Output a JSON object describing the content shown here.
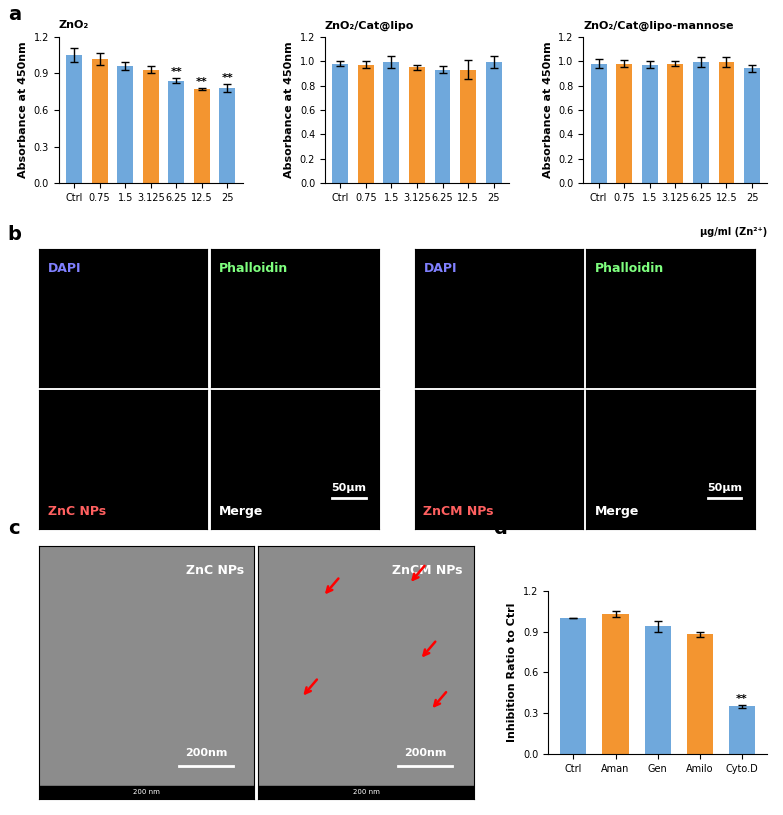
{
  "chart_data": [
    {
      "type": "bar",
      "title": "ZnO₂",
      "y_label": "Absorbance at 450nm",
      "categories": [
        "Ctrl",
        "0.75",
        "1.5",
        "3.125",
        "6.25",
        "12.5",
        "25"
      ],
      "values": [
        1.05,
        1.02,
        0.96,
        0.93,
        0.84,
        0.77,
        0.78
      ],
      "errors": [
        0.06,
        0.05,
        0.03,
        0.03,
        0.02,
        0.01,
        0.03
      ],
      "significance": [
        null,
        null,
        null,
        null,
        "**",
        "**",
        "**"
      ],
      "colors": [
        "#6fa8dc",
        "#f39530",
        "#6fa8dc",
        "#f39530",
        "#6fa8dc",
        "#f39530",
        "#6fa8dc"
      ],
      "ylim": [
        0,
        1.2
      ],
      "yticks": [
        {
          "value": 0,
          "label": "0.0"
        },
        0.3,
        0.6,
        0.9,
        1.2
      ]
    },
    {
      "type": "bar",
      "title": "ZnO₂/Cat@lipo",
      "y_label": "Absorbance at 450nm",
      "categories": [
        "Ctrl",
        "0.75",
        "1.5",
        "3.125",
        "6.25",
        "12.5",
        "25"
      ],
      "values": [
        0.98,
        0.97,
        0.99,
        0.95,
        0.93,
        0.93,
        0.99
      ],
      "errors": [
        0.02,
        0.03,
        0.05,
        0.02,
        0.03,
        0.08,
        0.05
      ],
      "colors": [
        "#6fa8dc",
        "#f39530",
        "#6fa8dc",
        "#f39530",
        "#6fa8dc",
        "#f39530",
        "#6fa8dc"
      ],
      "ylim": [
        0,
        1.2
      ],
      "yticks": [
        {
          "value": 0,
          "label": "0.0"
        },
        0.2,
        0.4,
        0.6,
        0.8,
        1.0,
        1.2
      ]
    },
    {
      "type": "bar",
      "title": "ZnO₂/Cat@lipo-mannose",
      "y_label": "Absorbance at 450nm",
      "x_label": "μg/ml (Zn²⁺)",
      "categories": [
        "Ctrl",
        "0.75",
        "1.5",
        "3.125",
        "6.25",
        "12.5",
        "25"
      ],
      "values": [
        0.98,
        0.98,
        0.97,
        0.98,
        0.99,
        0.99,
        0.94
      ],
      "errors": [
        0.04,
        0.03,
        0.03,
        0.02,
        0.04,
        0.04,
        0.03
      ],
      "colors": [
        "#6fa8dc",
        "#f39530",
        "#6fa8dc",
        "#f39530",
        "#6fa8dc",
        "#f39530",
        "#6fa8dc"
      ],
      "ylim": [
        0,
        1.2
      ],
      "yticks": [
        {
          "value": 0,
          "label": "0.0"
        },
        0.2,
        0.4,
        0.6,
        0.8,
        1.0,
        1.2
      ]
    },
    {
      "type": "bar",
      "y_label": "Inhibition Ratio to Ctrl",
      "categories": [
        "Ctrl",
        "Aman",
        "Gen",
        "Amilo",
        "Cyto.D"
      ],
      "values": [
        1.0,
        1.03,
        0.94,
        0.88,
        0.35
      ],
      "errors": [
        0.0,
        0.02,
        0.04,
        0.02,
        0.01
      ],
      "significance": [
        null,
        null,
        null,
        null,
        "**"
      ],
      "colors": [
        "#6fa8dc",
        "#f39530",
        "#6fa8dc",
        "#f39530",
        "#6fa8dc"
      ],
      "ylim": [
        0,
        1.2
      ],
      "yticks": [
        {
          "value": 0,
          "label": "0.0"
        },
        0.3,
        0.6,
        0.9,
        1.2
      ]
    }
  ],
  "panel_labels": [
    "a",
    "b",
    "c",
    "d"
  ],
  "image_panels": {
    "b": [
      {
        "channels": [
          "DAPI",
          "Phalloidin",
          "ZnC NPs",
          "Merge"
        ],
        "scale_bar": "50μm"
      },
      {
        "channels": [
          "DAPI",
          "Phalloidin",
          "ZnCM NPs",
          "Merge"
        ],
        "scale_bar": "50μm"
      }
    ],
    "c": [
      {
        "label": "ZnC NPs",
        "scale_bar": "200nm",
        "footer": "200 nm"
      },
      {
        "label": "ZnCM NPs",
        "scale_bar": "200nm",
        "footer": "200 nm"
      }
    ]
  }
}
